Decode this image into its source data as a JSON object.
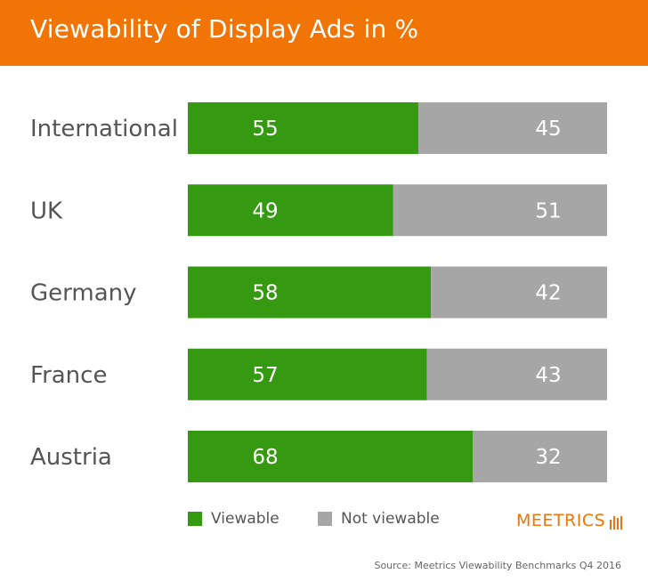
{
  "title": "Viewability of Display Ads in %",
  "colors": {
    "header": "#f07406",
    "viewable": "#359a12",
    "not_viewable": "#a6a6a6"
  },
  "legend": {
    "viewable": "Viewable",
    "not_viewable": "Not viewable"
  },
  "logo": "MEETRICS",
  "source": "Source: Meetrics Viewability Benchmarks Q4 2016",
  "chart_data": {
    "type": "bar",
    "orientation": "horizontal",
    "stacked": true,
    "categories": [
      "International",
      "UK",
      "Germany",
      "France",
      "Austria"
    ],
    "series": [
      {
        "name": "Viewable",
        "values": [
          55,
          49,
          58,
          57,
          68
        ]
      },
      {
        "name": "Not viewable",
        "values": [
          45,
          51,
          42,
          43,
          32
        ]
      }
    ],
    "xlim": [
      0,
      100
    ],
    "legend_position": "bottom",
    "grid": false
  }
}
